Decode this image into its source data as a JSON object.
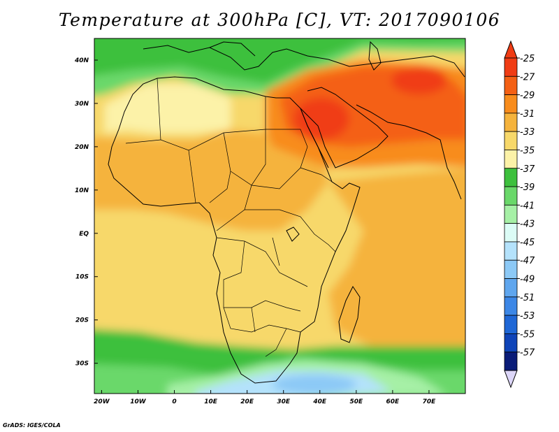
{
  "title": "Temperature at 300hPa [C], VT: 2017090106",
  "credit": "GrADS: IGES/COLA",
  "map": {
    "lon_range": [
      -22,
      80
    ],
    "lat_range": [
      -37,
      45
    ],
    "lon_ticks": [
      {
        "value": -20,
        "label": "20W"
      },
      {
        "value": -10,
        "label": "10W"
      },
      {
        "value": 0,
        "label": "0"
      },
      {
        "value": 10,
        "label": "10E"
      },
      {
        "value": 20,
        "label": "20E"
      },
      {
        "value": 30,
        "label": "30E"
      },
      {
        "value": 40,
        "label": "40E"
      },
      {
        "value": 50,
        "label": "50E"
      },
      {
        "value": 60,
        "label": "60E"
      },
      {
        "value": 70,
        "label": "70E"
      }
    ],
    "lat_ticks": [
      {
        "value": 40,
        "label": "40N"
      },
      {
        "value": 30,
        "label": "30N"
      },
      {
        "value": 20,
        "label": "20N"
      },
      {
        "value": 10,
        "label": "10N"
      },
      {
        "value": 0,
        "label": "EQ"
      },
      {
        "value": -10,
        "label": "10S"
      },
      {
        "value": -20,
        "label": "20S"
      },
      {
        "value": -30,
        "label": "30S"
      }
    ]
  },
  "colorbar": {
    "labels": [
      "-25",
      "-27",
      "-29",
      "-31",
      "-33",
      "-35",
      "-37",
      "-39",
      "-41",
      "-43",
      "-45",
      "-47",
      "-49",
      "-51",
      "-53",
      "-55",
      "-57"
    ],
    "colors": [
      "#f03c14",
      "#f46014",
      "#f88c1c",
      "#f5b33c",
      "#f7d86a",
      "#fcf2a8",
      "#3dc03d",
      "#6ad86a",
      "#a6f0a6",
      "#dcfcf6",
      "#b4e2fb",
      "#8cc9f6",
      "#5fa6ee",
      "#3c87e6",
      "#1f67d6",
      "#0f44b8",
      "#0a1c78"
    ]
  }
}
